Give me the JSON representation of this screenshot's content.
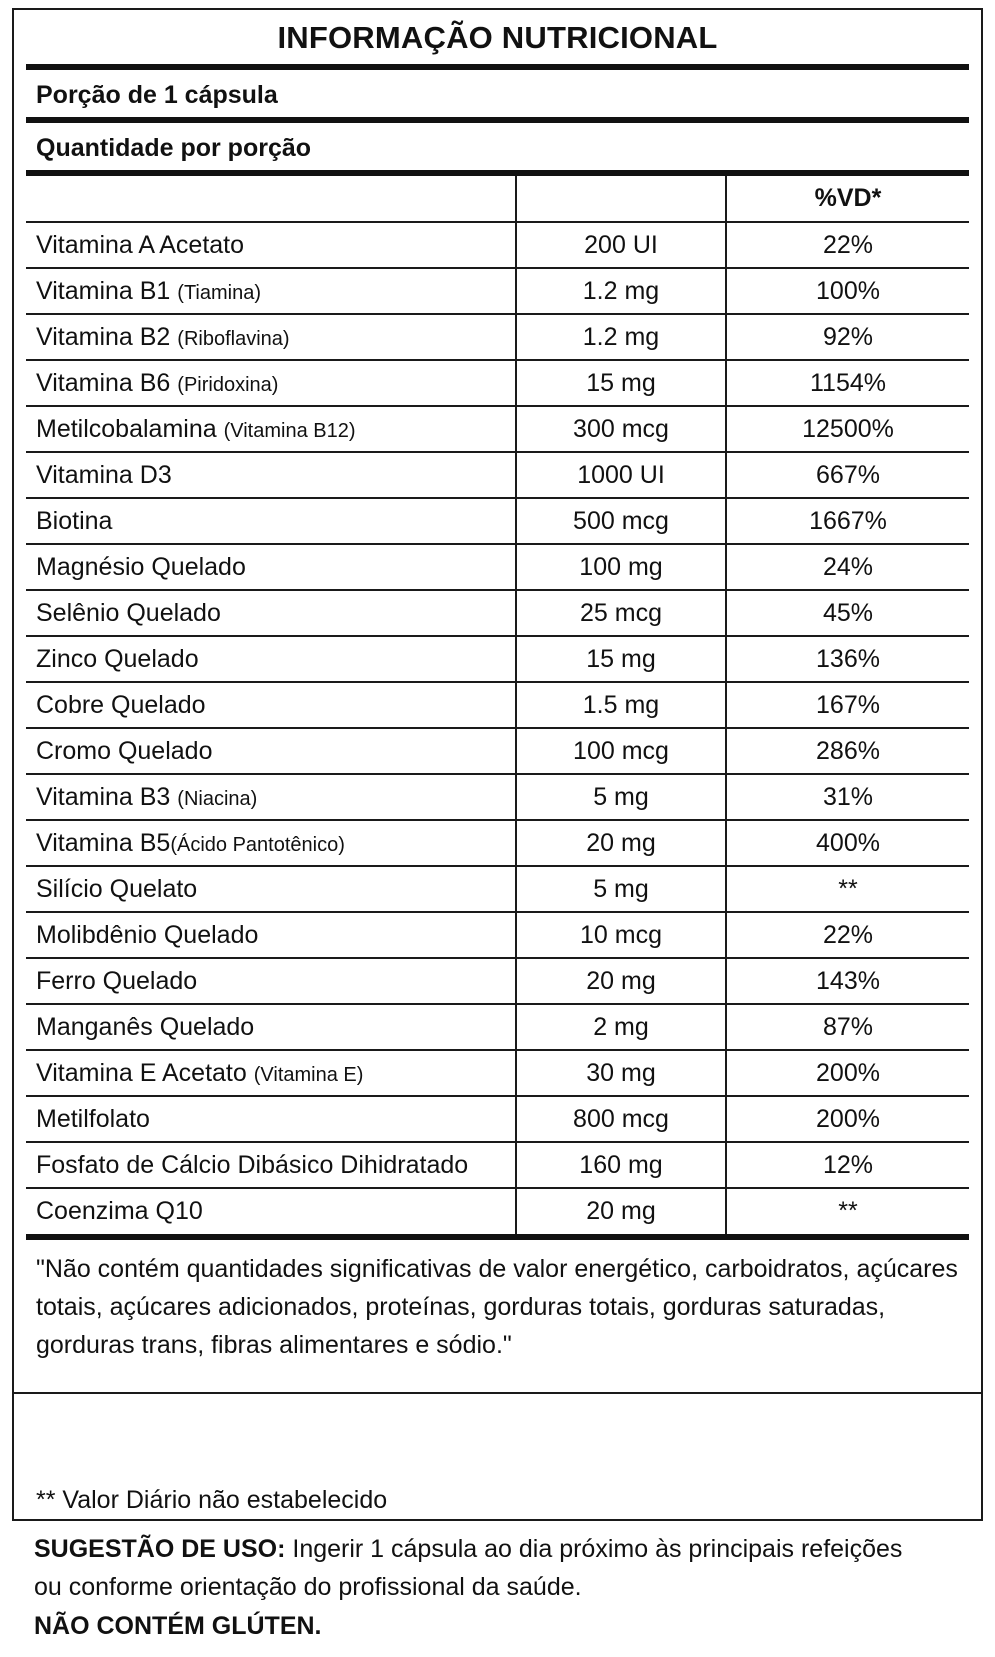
{
  "title": "INFORMAÇÃO NUTRICIONAL",
  "serving": "Porção de 1 cápsula",
  "amount_per_serving": "Quantidade por porção",
  "columns": {
    "nutrient": "",
    "amount": "",
    "dv": "%VD*"
  },
  "rows": [
    {
      "name": "Vitamina A Acetato",
      "sub": "",
      "amount": "200 UI",
      "dv": "22%"
    },
    {
      "name": "Vitamina B1 ",
      "sub": "(Tiamina)",
      "amount": "1.2 mg",
      "dv": "100%"
    },
    {
      "name": "Vitamina B2 ",
      "sub": "(Riboflavina)",
      "amount": "1.2 mg",
      "dv": "92%"
    },
    {
      "name": "Vitamina B6 ",
      "sub": "(Piridoxina)",
      "amount": "15 mg",
      "dv": "1154%"
    },
    {
      "name": "Metilcobalamina ",
      "sub": "(Vitamina B12)",
      "amount": "300 mcg",
      "dv": "12500%"
    },
    {
      "name": "Vitamina D3",
      "sub": "",
      "amount": "1000 UI",
      "dv": "667%"
    },
    {
      "name": "Biotina",
      "sub": "",
      "amount": "500 mcg",
      "dv": "1667%"
    },
    {
      "name": "Magnésio Quelado",
      "sub": "",
      "amount": "100 mg",
      "dv": "24%"
    },
    {
      "name": "Selênio Quelado",
      "sub": "",
      "amount": "25 mcg",
      "dv": "45%"
    },
    {
      "name": "Zinco Quelado",
      "sub": "",
      "amount": "15 mg",
      "dv": "136%"
    },
    {
      "name": "Cobre Quelado",
      "sub": "",
      "amount": "1.5 mg",
      "dv": "167%"
    },
    {
      "name": "Cromo Quelado",
      "sub": "",
      "amount": "100 mcg",
      "dv": "286%"
    },
    {
      "name": "Vitamina B3 ",
      "sub": "(Niacina)",
      "amount": "5 mg",
      "dv": "31%"
    },
    {
      "name": "Vitamina B5",
      "sub": "(Ácido Pantotênico)",
      "amount": "20 mg",
      "dv": "400%"
    },
    {
      "name": "Silício Quelato",
      "sub": "",
      "amount": "5 mg",
      "dv": "**"
    },
    {
      "name": "Molibdênio Quelado",
      "sub": "",
      "amount": "10 mcg",
      "dv": "22%"
    },
    {
      "name": "Ferro Quelado",
      "sub": "",
      "amount": "20 mg",
      "dv": "143%"
    },
    {
      "name": "Manganês Quelado",
      "sub": "",
      "amount": "2 mg",
      "dv": "87%"
    },
    {
      "name": "Vitamina E Acetato ",
      "sub": "(Vitamina E)",
      "amount": "30 mg",
      "dv": "200%"
    },
    {
      "name": "Metilfolato",
      "sub": "",
      "amount": "800 mcg",
      "dv": "200%"
    },
    {
      "name": "Fosfato de Cálcio Dibásico Dihidratado",
      "sub": "",
      "amount": "160 mg",
      "dv": "12%"
    },
    {
      "name": "Coenzima Q10",
      "sub": "",
      "amount": "20 mg",
      "dv": "**"
    }
  ],
  "disclaimer": "\"Não contém quantidades significativas de valor energético, carboidratos, açúcares totais, açúcares adicionados, proteínas, gorduras totais, gorduras saturadas, gorduras trans, fibras alimentares e sódio.\"",
  "footnote": "** Valor Diário não estabelecido",
  "usage": {
    "label": "SUGESTÃO DE USO:",
    "text": " Ingerir 1 cápsula ao dia próximo às principais refeições ou conforme orientação do profissional da saúde."
  },
  "gluten": "NÃO CONTÉM GLÚTEN."
}
